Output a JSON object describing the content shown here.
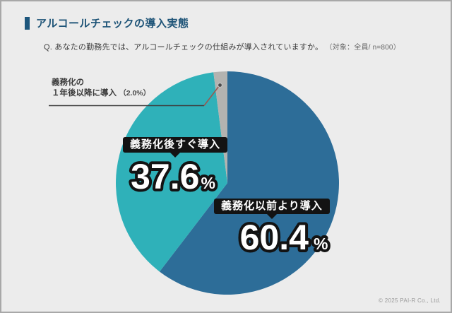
{
  "page": {
    "background": "#ececec",
    "border_color": "#a8a8a8"
  },
  "header": {
    "title": "アルコールチェックの導入実態",
    "accent_color": "#1d567c"
  },
  "question": {
    "text": "Q. あなたの勤務先では、アルコールチェックの仕組みが導入されていますか。",
    "note": "（対象：全員/ n=800）"
  },
  "chart_data": {
    "type": "pie",
    "title": "アルコールチェックの導入実態",
    "unit": "%",
    "start_angle": "top, clockwise",
    "n": 800,
    "slices": [
      {
        "label": "義務化以前より導入",
        "value": 60.4,
        "color": "#2d6d98"
      },
      {
        "label": "義務化後すぐ導入",
        "value": 37.6,
        "color": "#2fb1b9"
      },
      {
        "label": "義務化の１年後以降に導入",
        "value": 2.0,
        "color": "#b3b3b0"
      }
    ],
    "legend_position": "labels on chart"
  },
  "callouts": {
    "gray_line1": "義務化の",
    "gray_line2": "１年後以降に導入",
    "gray_value": "（2.0%）",
    "leader_line_colors": {
      "horizontal": "#3d3d3d",
      "diagonal": "#9a584f",
      "dot": "#4c4c4c"
    }
  },
  "footer": {
    "copyright": "© 2025 PAI-R Co., Ltd."
  }
}
